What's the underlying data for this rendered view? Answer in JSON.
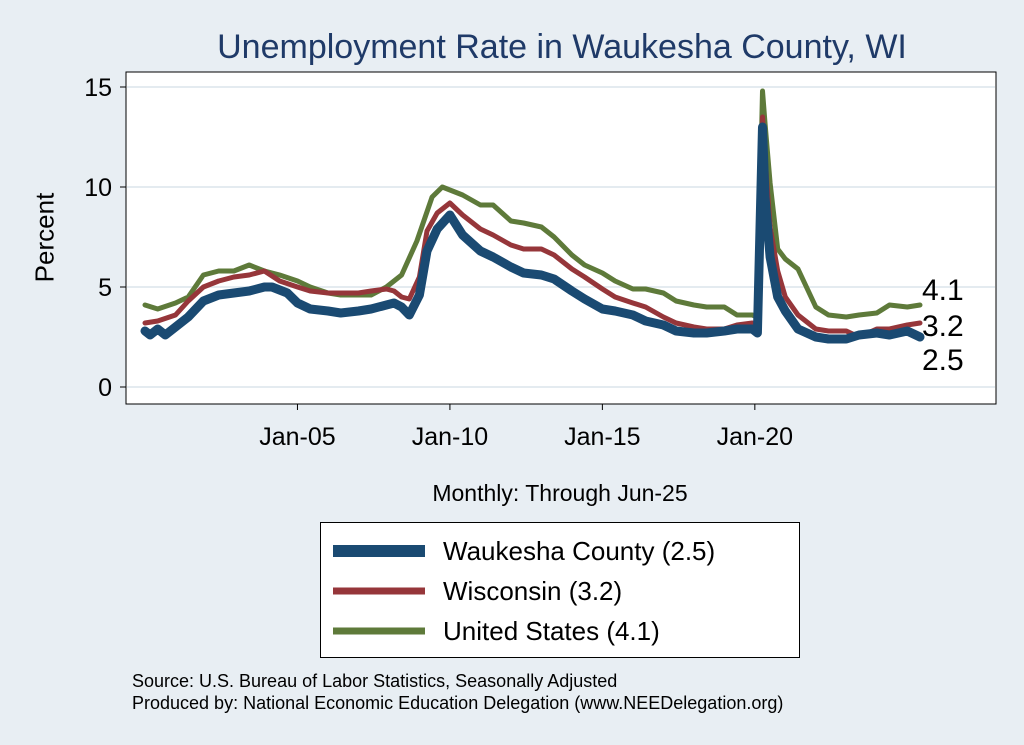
{
  "chart_data": {
    "type": "line",
    "title": "Unemployment Rate in Waukesha  County, WI",
    "xlabel": "Monthly: Through Jun-25",
    "ylabel": "Percent",
    "x_range": [
      "2000-01",
      "2025-06"
    ],
    "ylim": [
      -0.8,
      15.9
    ],
    "yticks": [
      0,
      5,
      10,
      15
    ],
    "xticks": [
      {
        "label": "Jan-05",
        "date": "2005-01"
      },
      {
        "label": "Jan-10",
        "date": "2010-01"
      },
      {
        "label": "Jan-15",
        "date": "2015-01"
      },
      {
        "label": "Jan-20",
        "date": "2020-01"
      }
    ],
    "grid": true,
    "legend_position": "bottom",
    "series": [
      {
        "name": "Waukesha  County (2.5)",
        "color": "#1a4a72",
        "end_label": "2.5",
        "points": [
          [
            "2000-01",
            2.8
          ],
          [
            "2000-03",
            2.6
          ],
          [
            "2000-06",
            2.9
          ],
          [
            "2000-09",
            2.6
          ],
          [
            "2001-01",
            3.0
          ],
          [
            "2001-06",
            3.5
          ],
          [
            "2001-12",
            4.3
          ],
          [
            "2002-06",
            4.6
          ],
          [
            "2002-12",
            4.7
          ],
          [
            "2003-06",
            4.8
          ],
          [
            "2003-12",
            5.0
          ],
          [
            "2004-03",
            5.0
          ],
          [
            "2004-09",
            4.7
          ],
          [
            "2005-01",
            4.2
          ],
          [
            "2005-06",
            3.9
          ],
          [
            "2006-01",
            3.8
          ],
          [
            "2006-06",
            3.7
          ],
          [
            "2007-01",
            3.8
          ],
          [
            "2007-06",
            3.9
          ],
          [
            "2007-12",
            4.1
          ],
          [
            "2008-03",
            4.2
          ],
          [
            "2008-06",
            4.0
          ],
          [
            "2008-09",
            3.6
          ],
          [
            "2009-01",
            4.6
          ],
          [
            "2009-04",
            6.8
          ],
          [
            "2009-08",
            7.9
          ],
          [
            "2010-01",
            8.6
          ],
          [
            "2010-06",
            7.6
          ],
          [
            "2011-01",
            6.8
          ],
          [
            "2011-06",
            6.5
          ],
          [
            "2012-01",
            6.0
          ],
          [
            "2012-06",
            5.7
          ],
          [
            "2013-01",
            5.6
          ],
          [
            "2013-06",
            5.4
          ],
          [
            "2014-01",
            4.8
          ],
          [
            "2014-06",
            4.4
          ],
          [
            "2015-01",
            3.9
          ],
          [
            "2015-06",
            3.8
          ],
          [
            "2016-01",
            3.6
          ],
          [
            "2016-06",
            3.3
          ],
          [
            "2017-01",
            3.1
          ],
          [
            "2017-06",
            2.8
          ],
          [
            "2018-01",
            2.7
          ],
          [
            "2018-06",
            2.7
          ],
          [
            "2019-01",
            2.8
          ],
          [
            "2019-06",
            2.9
          ],
          [
            "2019-12",
            2.9
          ],
          [
            "2020-02",
            2.7
          ],
          [
            "2020-04",
            13.0
          ],
          [
            "2020-05",
            9.5
          ],
          [
            "2020-07",
            6.5
          ],
          [
            "2020-10",
            4.5
          ],
          [
            "2021-01",
            3.8
          ],
          [
            "2021-06",
            2.9
          ],
          [
            "2022-01",
            2.5
          ],
          [
            "2022-06",
            2.4
          ],
          [
            "2023-01",
            2.4
          ],
          [
            "2023-06",
            2.6
          ],
          [
            "2024-01",
            2.7
          ],
          [
            "2024-06",
            2.6
          ],
          [
            "2025-01",
            2.8
          ],
          [
            "2025-06",
            2.5
          ]
        ]
      },
      {
        "name": "Wisconsin (3.2)",
        "color": "#96363a",
        "end_label": "3.2",
        "points": [
          [
            "2000-01",
            3.2
          ],
          [
            "2000-06",
            3.3
          ],
          [
            "2001-01",
            3.6
          ],
          [
            "2001-06",
            4.3
          ],
          [
            "2001-12",
            5.0
          ],
          [
            "2002-06",
            5.3
          ],
          [
            "2002-12",
            5.5
          ],
          [
            "2003-06",
            5.6
          ],
          [
            "2003-12",
            5.8
          ],
          [
            "2004-06",
            5.3
          ],
          [
            "2005-01",
            5.0
          ],
          [
            "2005-06",
            4.8
          ],
          [
            "2006-01",
            4.7
          ],
          [
            "2006-06",
            4.7
          ],
          [
            "2007-01",
            4.7
          ],
          [
            "2007-06",
            4.8
          ],
          [
            "2007-12",
            4.9
          ],
          [
            "2008-03",
            4.8
          ],
          [
            "2008-06",
            4.5
          ],
          [
            "2008-09",
            4.4
          ],
          [
            "2009-01",
            5.5
          ],
          [
            "2009-04",
            7.8
          ],
          [
            "2009-08",
            8.7
          ],
          [
            "2010-01",
            9.2
          ],
          [
            "2010-06",
            8.6
          ],
          [
            "2011-01",
            7.9
          ],
          [
            "2011-06",
            7.6
          ],
          [
            "2012-01",
            7.1
          ],
          [
            "2012-06",
            6.9
          ],
          [
            "2013-01",
            6.9
          ],
          [
            "2013-06",
            6.6
          ],
          [
            "2014-01",
            5.9
          ],
          [
            "2014-06",
            5.5
          ],
          [
            "2015-01",
            4.9
          ],
          [
            "2015-06",
            4.5
          ],
          [
            "2016-01",
            4.2
          ],
          [
            "2016-06",
            4.0
          ],
          [
            "2017-01",
            3.5
          ],
          [
            "2017-06",
            3.2
          ],
          [
            "2018-01",
            3.0
          ],
          [
            "2018-06",
            2.9
          ],
          [
            "2019-01",
            2.9
          ],
          [
            "2019-06",
            3.1
          ],
          [
            "2019-12",
            3.2
          ],
          [
            "2020-02",
            3.0
          ],
          [
            "2020-04",
            13.5
          ],
          [
            "2020-05",
            11.5
          ],
          [
            "2020-07",
            8.0
          ],
          [
            "2020-10",
            5.8
          ],
          [
            "2021-01",
            4.5
          ],
          [
            "2021-06",
            3.6
          ],
          [
            "2022-01",
            2.9
          ],
          [
            "2022-06",
            2.8
          ],
          [
            "2023-01",
            2.8
          ],
          [
            "2023-06",
            2.5
          ],
          [
            "2024-01",
            2.9
          ],
          [
            "2024-06",
            2.9
          ],
          [
            "2025-01",
            3.1
          ],
          [
            "2025-06",
            3.2
          ]
        ]
      },
      {
        "name": "United States (4.1)",
        "color": "#5e7a3a",
        "end_label": "4.1",
        "points": [
          [
            "2000-01",
            4.1
          ],
          [
            "2000-06",
            3.9
          ],
          [
            "2001-01",
            4.2
          ],
          [
            "2001-06",
            4.5
          ],
          [
            "2001-12",
            5.6
          ],
          [
            "2002-06",
            5.8
          ],
          [
            "2002-12",
            5.8
          ],
          [
            "2003-06",
            6.1
          ],
          [
            "2003-12",
            5.8
          ],
          [
            "2004-06",
            5.6
          ],
          [
            "2005-01",
            5.3
          ],
          [
            "2005-06",
            5.0
          ],
          [
            "2006-01",
            4.7
          ],
          [
            "2006-06",
            4.6
          ],
          [
            "2007-01",
            4.6
          ],
          [
            "2007-06",
            4.6
          ],
          [
            "2007-12",
            5.0
          ],
          [
            "2008-06",
            5.6
          ],
          [
            "2008-12",
            7.3
          ],
          [
            "2009-06",
            9.5
          ],
          [
            "2009-10",
            10.0
          ],
          [
            "2010-06",
            9.6
          ],
          [
            "2011-01",
            9.1
          ],
          [
            "2011-06",
            9.1
          ],
          [
            "2012-01",
            8.3
          ],
          [
            "2012-06",
            8.2
          ],
          [
            "2013-01",
            8.0
          ],
          [
            "2013-06",
            7.5
          ],
          [
            "2014-01",
            6.6
          ],
          [
            "2014-06",
            6.1
          ],
          [
            "2015-01",
            5.7
          ],
          [
            "2015-06",
            5.3
          ],
          [
            "2016-01",
            4.9
          ],
          [
            "2016-06",
            4.9
          ],
          [
            "2017-01",
            4.7
          ],
          [
            "2017-06",
            4.3
          ],
          [
            "2018-01",
            4.1
          ],
          [
            "2018-06",
            4.0
          ],
          [
            "2019-01",
            4.0
          ],
          [
            "2019-06",
            3.6
          ],
          [
            "2019-12",
            3.6
          ],
          [
            "2020-02",
            3.5
          ],
          [
            "2020-04",
            14.8
          ],
          [
            "2020-05",
            13.2
          ],
          [
            "2020-07",
            10.2
          ],
          [
            "2020-10",
            6.9
          ],
          [
            "2021-01",
            6.4
          ],
          [
            "2021-06",
            5.9
          ],
          [
            "2022-01",
            4.0
          ],
          [
            "2022-06",
            3.6
          ],
          [
            "2023-01",
            3.5
          ],
          [
            "2023-06",
            3.6
          ],
          [
            "2024-01",
            3.7
          ],
          [
            "2024-06",
            4.1
          ],
          [
            "2025-01",
            4.0
          ],
          [
            "2025-06",
            4.1
          ]
        ]
      }
    ]
  },
  "legend": [
    {
      "label": "Waukesha  County (2.5)",
      "color": "#1a4a72",
      "stroke": 12
    },
    {
      "label": "Wisconsin (3.2)",
      "color": "#96363a",
      "stroke": 7
    },
    {
      "label": "United States (4.1)",
      "color": "#5e7a3a",
      "stroke": 7
    }
  ],
  "source": {
    "line1": "Source: U.S. Bureau of Labor Statistics, Seasonally Adjusted",
    "line2": "Produced by: National Economic Education Delegation (www.NEEDelegation.org)"
  }
}
